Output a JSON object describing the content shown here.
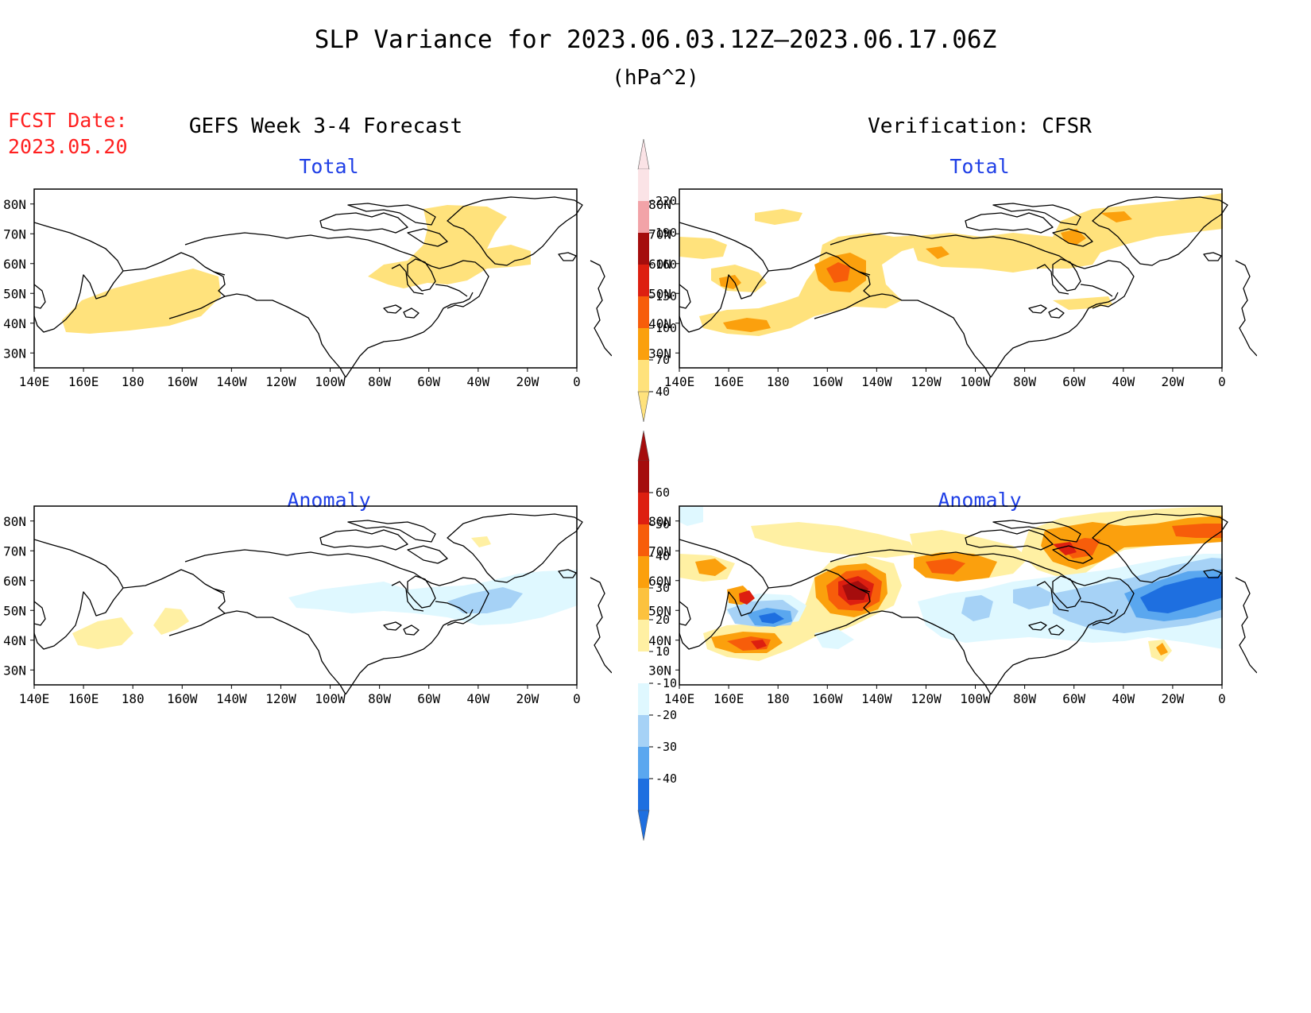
{
  "header": {
    "title": "SLP Variance for 2023.06.03.12Z—2023.06.17.06Z",
    "units": "(hPa^2)",
    "fcst_label": "FCST Date:",
    "fcst_date": "2023.05.20",
    "left_heading": "GEFS Week 3-4 Forecast",
    "right_heading": "Verification: CFSR"
  },
  "panels": {
    "fc_total": {
      "title": "Total"
    },
    "vf_total": {
      "title": "Total"
    },
    "fc_anom": {
      "title": "Anomaly"
    },
    "vf_anom": {
      "title": "Anomaly"
    }
  },
  "axes": {
    "lon_labels": [
      "140E",
      "160E",
      "180",
      "160W",
      "140W",
      "120W",
      "100W",
      "80W",
      "60W",
      "40W",
      "20W",
      "0"
    ],
    "lat_labels": [
      "80N",
      "70N",
      "60N",
      "50N",
      "40N",
      "30N"
    ],
    "lon_range": [
      140,
      360
    ],
    "lat_range": [
      25,
      85
    ]
  },
  "colorbars": {
    "total": {
      "labels": [
        "220",
        "190",
        "160",
        "130",
        "100",
        "70",
        "40"
      ],
      "colors": [
        "#fbe3e6",
        "#f2a3a8",
        "#a50d0d",
        "#dd1f10",
        "#f75d0a",
        "#fba00d",
        "#ffe27c"
      ]
    },
    "anomaly": {
      "labels": [
        "60",
        "50",
        "40",
        "30",
        "20",
        "10",
        "-10",
        "-20",
        "-30",
        "-40"
      ],
      "colors": [
        "#a50d0d",
        "#dd1f10",
        "#f75d0a",
        "#fba00d",
        "#fcc23e",
        "#fff0a3",
        "#ffffff",
        "#dff8ff",
        "#a6d2f6",
        "#5aa7ef",
        "#1e6fe0"
      ]
    }
  },
  "colors": {
    "title_text": "#000000",
    "fcst_text": "#ff2020",
    "panel_title": "#1f3fe6",
    "yellow": "#ffe27c",
    "orange": "#fba00d",
    "darkorange": "#f75d0a",
    "red": "#dd1f10",
    "darkred": "#a50d0d",
    "lightyellow": "#fff0a3",
    "cyan": "#dff8ff",
    "lightblue": "#a6d2f6",
    "blue": "#5aa7ef",
    "darkblue": "#1e6fe0"
  }
}
